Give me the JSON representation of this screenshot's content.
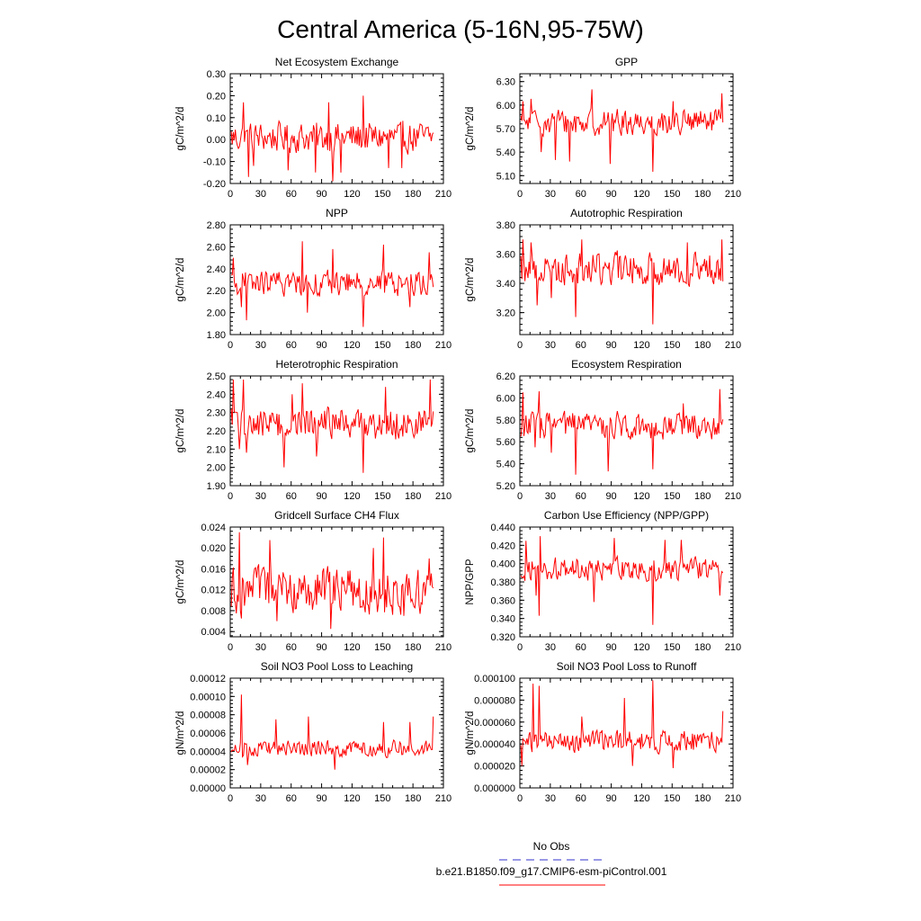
{
  "title": "Central America (5-16N,95-75W)",
  "colors": {
    "series": "#ff0000",
    "obs": "#3333cc",
    "axis": "#000000"
  },
  "legend": {
    "obs_label": "No Obs",
    "model_label": "b.e21.B1850.f09_g17.CMIP6-esm-piControl.001"
  },
  "chart_data": [
    {
      "type": "line",
      "title": "Net Ecosystem Exchange",
      "ylabel": "gC/m^2/d",
      "xlim": [
        0,
        210
      ],
      "xticks": [
        0,
        30,
        60,
        90,
        120,
        150,
        180,
        210
      ],
      "xticklabels": [
        "0",
        "30",
        "60",
        "90",
        "120",
        "150",
        "180",
        "210"
      ],
      "ylim": [
        -0.2,
        0.3
      ],
      "yticks": [
        -0.2,
        -0.1,
        0.0,
        0.1,
        0.2,
        0.3
      ],
      "yticklabels": [
        "-0.20",
        "-0.10",
        "0.00",
        "0.10",
        "0.20",
        "0.30"
      ],
      "series": [
        {
          "name": "b.e21.B1850.f09_g17.CMIP6-esm-piControl.001",
          "mean": 0.01,
          "amp": 0.055,
          "spikes": [
            [
              12,
              0.17
            ],
            [
              17,
              -0.17
            ],
            [
              22,
              -0.12
            ],
            [
              56,
              -0.14
            ],
            [
              83,
              -0.15
            ],
            [
              96,
              0.17
            ],
            [
              100,
              -0.19
            ],
            [
              108,
              -0.15
            ],
            [
              130,
              0.2
            ],
            [
              155,
              -0.13
            ],
            [
              168,
              -0.13
            ]
          ]
        }
      ]
    },
    {
      "type": "line",
      "title": "GPP",
      "ylabel": "gC/m^2/d",
      "xlim": [
        0,
        210
      ],
      "xticks": [
        0,
        30,
        60,
        90,
        120,
        150,
        180,
        210
      ],
      "xticklabels": [
        "0",
        "30",
        "60",
        "90",
        "120",
        "150",
        "180",
        "210"
      ],
      "ylim": [
        5.0,
        6.4
      ],
      "yticks": [
        5.1,
        5.4,
        5.7,
        6.0,
        6.3
      ],
      "yticklabels": [
        "5.10",
        "5.40",
        "5.70",
        "6.00",
        "6.30"
      ],
      "series": [
        {
          "name": "b.e21.B1850.f09_g17.CMIP6-esm-piControl.001",
          "mean": 5.78,
          "amp": 0.13,
          "spikes": [
            [
              2,
              6.05
            ],
            [
              10,
              6.08
            ],
            [
              20,
              5.4
            ],
            [
              34,
              5.3
            ],
            [
              48,
              5.28
            ],
            [
              70,
              6.2
            ],
            [
              88,
              5.25
            ],
            [
              130,
              5.15
            ],
            [
              150,
              6.05
            ],
            [
              198,
              6.15
            ]
          ]
        }
      ]
    },
    {
      "type": "line",
      "title": "NPP",
      "ylabel": "gC/m^2/d",
      "xlim": [
        0,
        210
      ],
      "xticks": [
        0,
        30,
        60,
        90,
        120,
        150,
        180,
        210
      ],
      "xticklabels": [
        "0",
        "30",
        "60",
        "90",
        "120",
        "150",
        "180",
        "210"
      ],
      "ylim": [
        1.8,
        2.8
      ],
      "yticks": [
        1.8,
        2.0,
        2.2,
        2.4,
        2.6,
        2.8
      ],
      "yticklabels": [
        "1.80",
        "2.00",
        "2.20",
        "2.40",
        "2.60",
        "2.80"
      ],
      "series": [
        {
          "name": "b.e21.B1850.f09_g17.CMIP6-esm-piControl.001",
          "mean": 2.27,
          "amp": 0.09,
          "spikes": [
            [
              2,
              2.5
            ],
            [
              10,
              2.05
            ],
            [
              15,
              1.93
            ],
            [
              70,
              2.65
            ],
            [
              75,
              2.0
            ],
            [
              100,
              2.58
            ],
            [
              130,
              1.87
            ],
            [
              150,
              2.62
            ],
            [
              176,
              2.05
            ],
            [
              195,
              2.55
            ]
          ]
        }
      ]
    },
    {
      "type": "line",
      "title": "Autotrophic Respiration",
      "ylabel": "gC/m^2/d",
      "xlim": [
        0,
        210
      ],
      "xticks": [
        0,
        30,
        60,
        90,
        120,
        150,
        180,
        210
      ],
      "xticklabels": [
        "0",
        "30",
        "60",
        "90",
        "120",
        "150",
        "180",
        "210"
      ],
      "ylim": [
        3.05,
        3.8
      ],
      "yticks": [
        3.2,
        3.4,
        3.6,
        3.8
      ],
      "yticklabels": [
        "3.20",
        "3.40",
        "3.60",
        "3.80"
      ],
      "series": [
        {
          "name": "b.e21.B1850.f09_g17.CMIP6-esm-piControl.001",
          "mean": 3.5,
          "amp": 0.09,
          "spikes": [
            [
              2,
              3.7
            ],
            [
              10,
              3.68
            ],
            [
              16,
              3.25
            ],
            [
              30,
              3.3
            ],
            [
              54,
              3.17
            ],
            [
              60,
              3.7
            ],
            [
              130,
              3.12
            ],
            [
              164,
              3.68
            ],
            [
              198,
              3.7
            ]
          ]
        }
      ]
    },
    {
      "type": "line",
      "title": "Heterotrophic Respiration",
      "ylabel": "gC/m^2/d",
      "xlim": [
        0,
        210
      ],
      "xticks": [
        0,
        30,
        60,
        90,
        120,
        150,
        180,
        210
      ],
      "xticklabels": [
        "0",
        "30",
        "60",
        "90",
        "120",
        "150",
        "180",
        "210"
      ],
      "ylim": [
        1.9,
        2.5
      ],
      "yticks": [
        1.9,
        2.0,
        2.1,
        2.2,
        2.3,
        2.4,
        2.5
      ],
      "yticklabels": [
        "1.90",
        "2.00",
        "2.10",
        "2.20",
        "2.30",
        "2.40",
        "2.50"
      ],
      "series": [
        {
          "name": "b.e21.B1850.f09_g17.CMIP6-esm-piControl.001",
          "mean": 2.24,
          "amp": 0.07,
          "spikes": [
            [
              2,
              2.48
            ],
            [
              8,
              2.1
            ],
            [
              12,
              2.48
            ],
            [
              15,
              2.08
            ],
            [
              52,
              2.0
            ],
            [
              60,
              2.4
            ],
            [
              70,
              2.46
            ],
            [
              84,
              2.06
            ],
            [
              130,
              1.97
            ],
            [
              152,
              2.44
            ],
            [
              196,
              2.48
            ]
          ]
        }
      ]
    },
    {
      "type": "line",
      "title": "Ecosystem Respiration",
      "ylabel": "gC/m^2/d",
      "xlim": [
        0,
        210
      ],
      "xticks": [
        0,
        30,
        60,
        90,
        120,
        150,
        180,
        210
      ],
      "xticklabels": [
        "0",
        "30",
        "60",
        "90",
        "120",
        "150",
        "180",
        "210"
      ],
      "ylim": [
        5.2,
        6.2
      ],
      "yticks": [
        5.2,
        5.4,
        5.6,
        5.8,
        6.0,
        6.2
      ],
      "yticklabels": [
        "5.20",
        "5.40",
        "5.60",
        "5.80",
        "6.00",
        "6.20"
      ],
      "series": [
        {
          "name": "b.e21.B1850.f09_g17.CMIP6-esm-piControl.001",
          "mean": 5.75,
          "amp": 0.1,
          "spikes": [
            [
              2,
              6.05
            ],
            [
              14,
              5.55
            ],
            [
              18,
              6.06
            ],
            [
              30,
              5.5
            ],
            [
              54,
              5.3
            ],
            [
              86,
              5.33
            ],
            [
              130,
              5.35
            ],
            [
              160,
              5.95
            ],
            [
              196,
              6.08
            ]
          ]
        }
      ]
    },
    {
      "type": "line",
      "title": "Gridcell Surface CH4 Flux",
      "ylabel": "gC/m^2/d",
      "xlim": [
        0,
        210
      ],
      "xticks": [
        0,
        30,
        60,
        90,
        120,
        150,
        180,
        210
      ],
      "xticklabels": [
        "0",
        "30",
        "60",
        "90",
        "120",
        "150",
        "180",
        "210"
      ],
      "ylim": [
        0.003,
        0.024
      ],
      "yticks": [
        0.004,
        0.008,
        0.012,
        0.016,
        0.02,
        0.024
      ],
      "yticklabels": [
        "0.004",
        "0.008",
        "0.012",
        "0.016",
        "0.020",
        "0.024"
      ],
      "series": [
        {
          "name": "b.e21.B1850.f09_g17.CMIP6-esm-piControl.001",
          "mean": 0.0118,
          "amp": 0.0035,
          "spikes": [
            [
              8,
              0.023
            ],
            [
              10,
              0.0065
            ],
            [
              38,
              0.0215
            ],
            [
              45,
              0.006
            ],
            [
              98,
              0.0045
            ],
            [
              140,
              0.02
            ],
            [
              150,
              0.022
            ],
            [
              170,
              0.007
            ],
            [
              195,
              0.018
            ]
          ]
        }
      ]
    },
    {
      "type": "line",
      "title": "Carbon Use Efficiency (NPP/GPP)",
      "ylabel": "NPP/GPP",
      "xlim": [
        0,
        210
      ],
      "xticks": [
        0,
        30,
        60,
        90,
        120,
        150,
        180,
        210
      ],
      "xticklabels": [
        "0",
        "30",
        "60",
        "90",
        "120",
        "150",
        "180",
        "210"
      ],
      "ylim": [
        0.32,
        0.44
      ],
      "yticks": [
        0.32,
        0.34,
        0.36,
        0.38,
        0.4,
        0.42,
        0.44
      ],
      "yticklabels": [
        "0.320",
        "0.340",
        "0.360",
        "0.380",
        "0.400",
        "0.420",
        "0.440"
      ],
      "series": [
        {
          "name": "b.e21.B1850.f09_g17.CMIP6-esm-piControl.001",
          "mean": 0.394,
          "amp": 0.01,
          "spikes": [
            [
              5,
              0.425
            ],
            [
              15,
              0.365
            ],
            [
              18,
              0.343
            ],
            [
              19,
              0.43
            ],
            [
              72,
              0.358
            ],
            [
              92,
              0.428
            ],
            [
              130,
              0.333
            ],
            [
              142,
              0.426
            ],
            [
              158,
              0.426
            ],
            [
              196,
              0.365
            ]
          ]
        }
      ]
    },
    {
      "type": "line",
      "title": "Soil NO3 Pool Loss to Leaching",
      "ylabel": "gN/m^2/d",
      "xlim": [
        0,
        210
      ],
      "xticks": [
        0,
        30,
        60,
        90,
        120,
        150,
        180,
        210
      ],
      "xticklabels": [
        "0",
        "30",
        "60",
        "90",
        "120",
        "150",
        "180",
        "210"
      ],
      "ylim": [
        0.0,
        0.00012
      ],
      "yticks": [
        0.0,
        2e-05,
        4e-05,
        6e-05,
        8e-05,
        0.0001,
        0.00012
      ],
      "yticklabels": [
        "0.00000",
        "0.00002",
        "0.00004",
        "0.00006",
        "0.00008",
        "0.00010",
        "0.00012"
      ],
      "series": [
        {
          "name": "b.e21.B1850.f09_g17.CMIP6-esm-piControl.001",
          "mean": 4.3e-05,
          "amp": 7e-06,
          "spikes": [
            [
              10,
              0.000102
            ],
            [
              16,
              2.5e-05
            ],
            [
              44,
              7.5e-05
            ],
            [
              76,
              7.8e-05
            ],
            [
              102,
              2e-05
            ],
            [
              150,
              7.2e-05
            ],
            [
              176,
              7.2e-05
            ],
            [
              199,
              7.8e-05
            ]
          ]
        }
      ]
    },
    {
      "type": "line",
      "title": "Soil NO3 Pool Loss to Runoff",
      "ylabel": "gN/m^2/d",
      "xlim": [
        0,
        210
      ],
      "xticks": [
        0,
        30,
        60,
        90,
        120,
        150,
        180,
        210
      ],
      "xticklabels": [
        "0",
        "30",
        "60",
        "90",
        "120",
        "150",
        "180",
        "210"
      ],
      "ylim": [
        0.0,
        0.0001
      ],
      "yticks": [
        0.0,
        2e-05,
        4e-05,
        6e-05,
        8e-05,
        0.0001
      ],
      "yticklabels": [
        "0.000000",
        "0.000020",
        "0.000040",
        "0.000060",
        "0.000080",
        "0.000100"
      ],
      "series": [
        {
          "name": "b.e21.B1850.f09_g17.CMIP6-esm-piControl.001",
          "mean": 4.2e-05,
          "amp": 8e-06,
          "spikes": [
            [
              1,
              2e-05
            ],
            [
              12,
              9.5e-05
            ],
            [
              18,
              9.3e-05
            ],
            [
              60,
              6.5e-05
            ],
            [
              102,
              8.2e-05
            ],
            [
              110,
              2e-05
            ],
            [
              130,
              9.8e-05
            ],
            [
              150,
              1.8e-05
            ],
            [
              199,
              7e-05
            ]
          ]
        }
      ]
    }
  ]
}
